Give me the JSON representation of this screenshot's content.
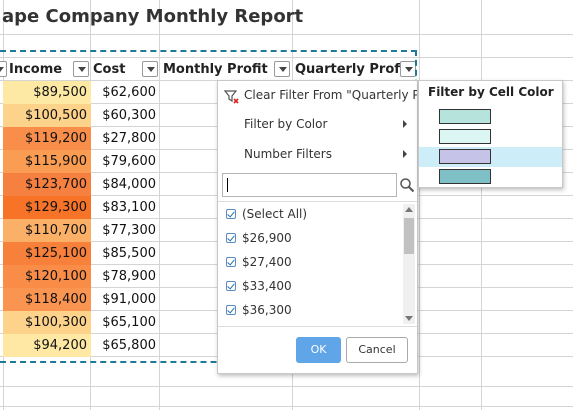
{
  "sheet": {
    "title": "ape Company Monthly Report",
    "headers": {
      "income": "Income",
      "cost": "Cost",
      "monthly_profit": "Monthly Profit",
      "quarterly_profit": "Quarterly Profit"
    },
    "rows": [
      {
        "income": "$89,500",
        "cost": "$62,600",
        "color": "#fde9a3"
      },
      {
        "income": "$100,500",
        "cost": "$60,300",
        "color": "#fdd28a"
      },
      {
        "income": "$119,200",
        "cost": "$27,800",
        "color": "#f98e4a"
      },
      {
        "income": "$115,900",
        "cost": "$79,600",
        "color": "#fa9c52"
      },
      {
        "income": "$123,700",
        "cost": "$84,000",
        "color": "#f6803f"
      },
      {
        "income": "$129,300",
        "cost": "$83,100",
        "color": "#f67328"
      },
      {
        "income": "$110,700",
        "cost": "$77,300",
        "color": "#fbb067"
      },
      {
        "income": "$125,100",
        "cost": "$85,500",
        "color": "#f7803a"
      },
      {
        "income": "$120,100",
        "cost": "$78,900",
        "color": "#f98c47"
      },
      {
        "income": "$118,400",
        "cost": "$91,000",
        "color": "#f99550"
      },
      {
        "income": "$100,300",
        "cost": "$65,100",
        "color": "#fdd38b"
      },
      {
        "income": "$94,200",
        "cost": "$65,800",
        "color": "#fee8a4"
      }
    ]
  },
  "filter_menu": {
    "clear_filter": "Clear Filter From \"Quarterly Pr",
    "filter_by_color": "Filter by Color",
    "number_filters": "Number Filters",
    "search_value": "",
    "items": [
      "(Select All)",
      "$26,900",
      "$27,400",
      "$33,400",
      "$36,300"
    ],
    "ok": "OK",
    "cancel": "Cancel"
  },
  "color_submenu": {
    "title": "Filter by Cell Color",
    "swatches": [
      "#b6e3dc",
      "#dcf6f4",
      "#c6c3e8",
      "#7fc0c6"
    ],
    "highlight": "#cdeef8"
  }
}
